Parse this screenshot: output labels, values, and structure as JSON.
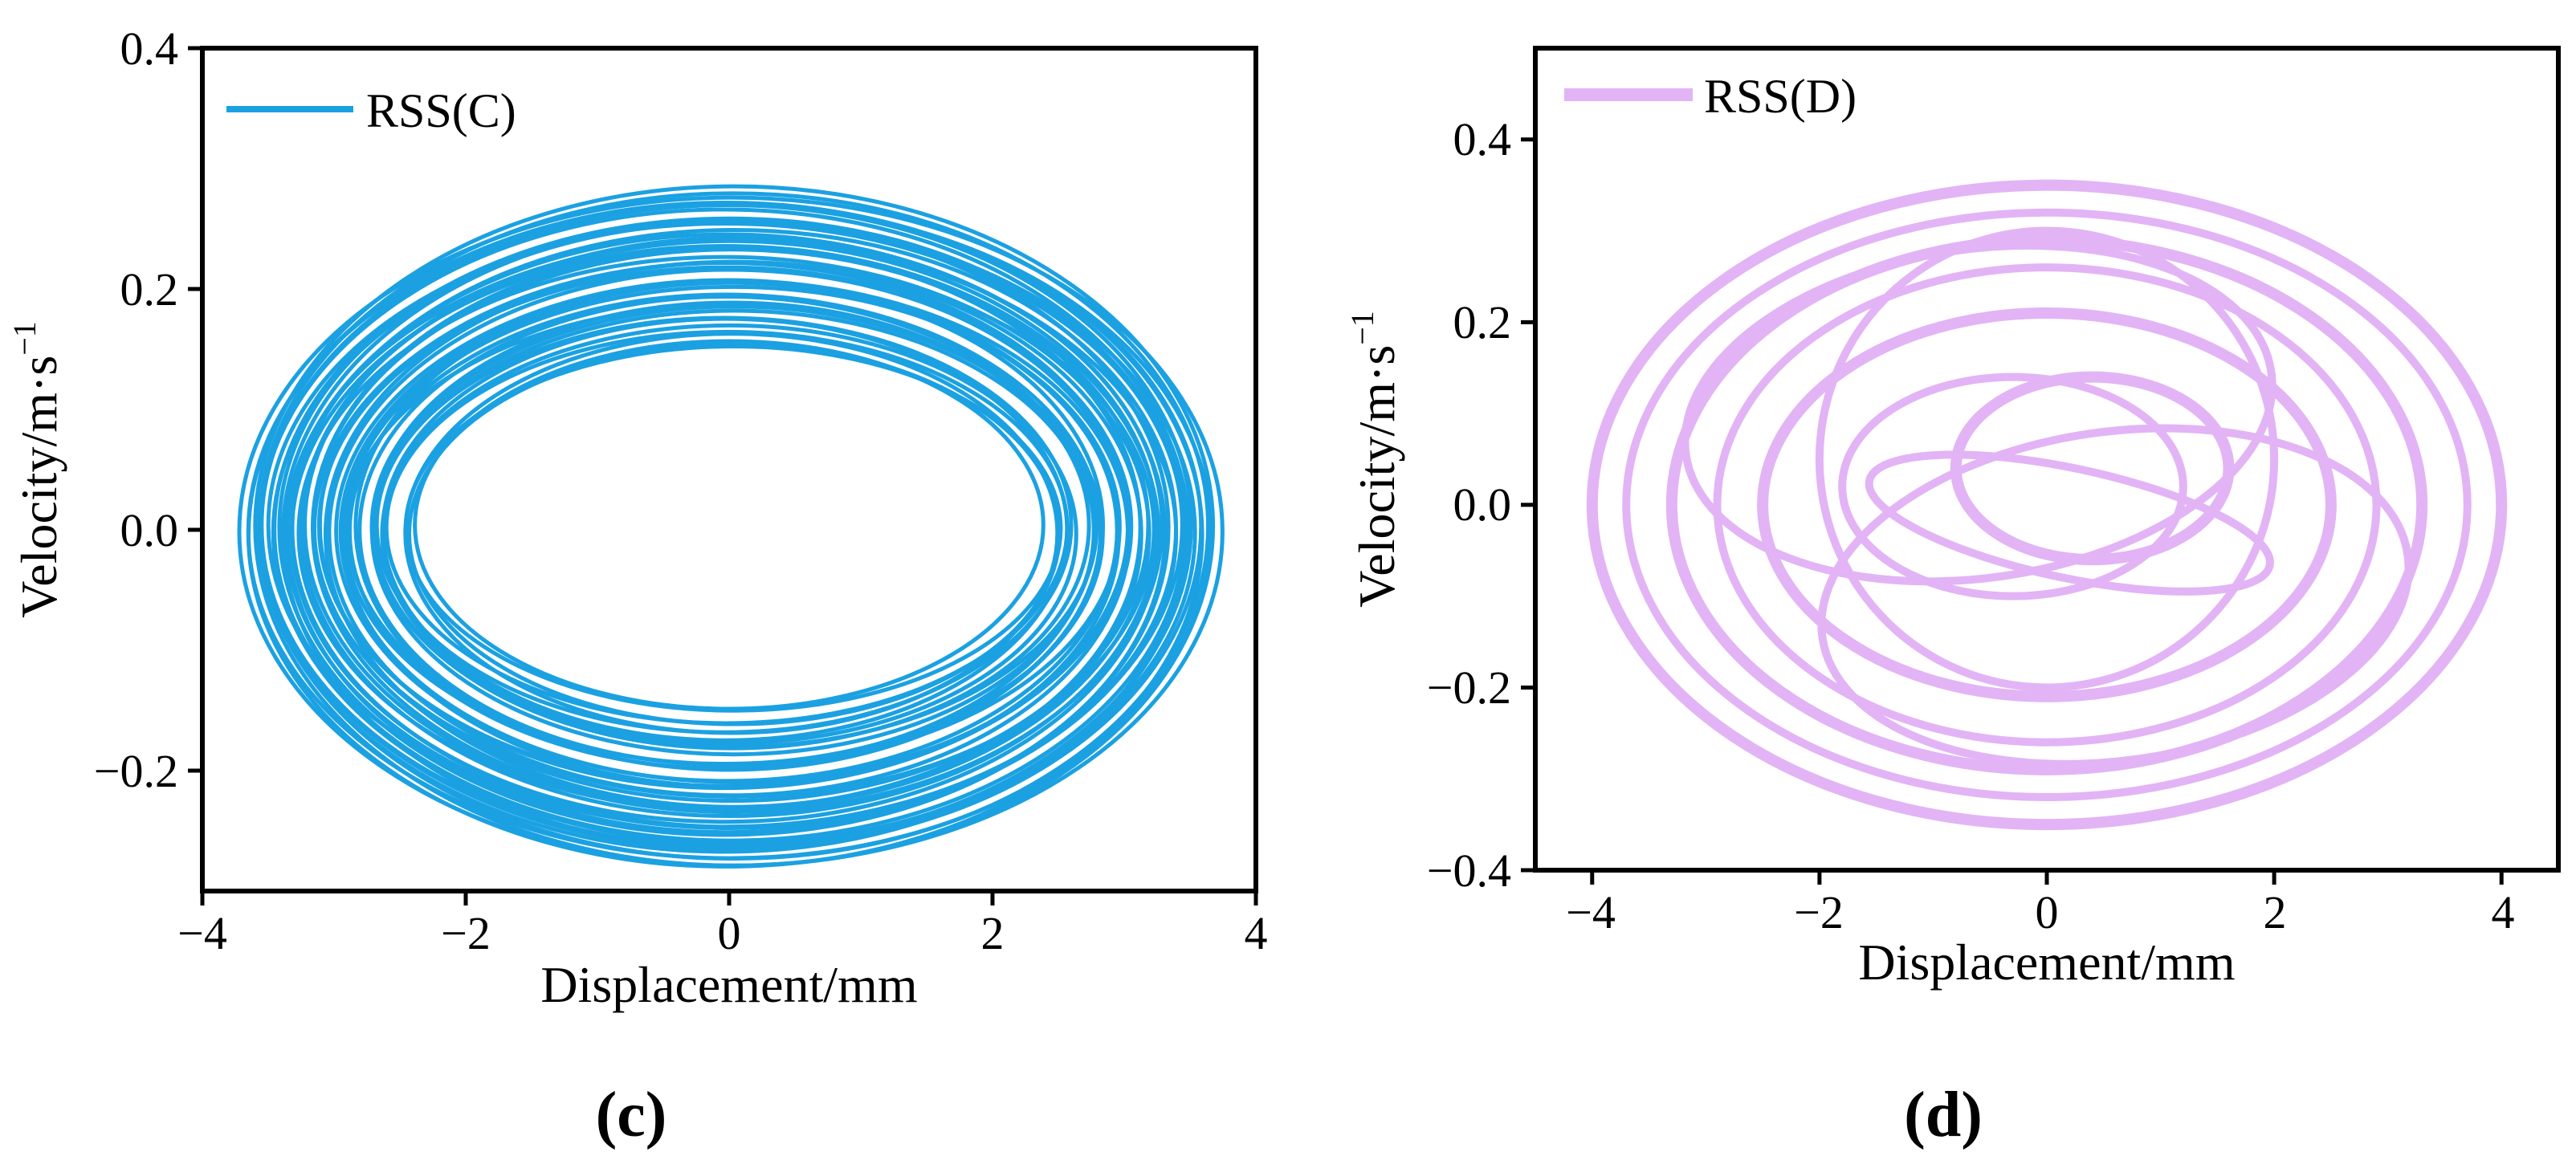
{
  "panels": [
    {
      "caption": "(c)",
      "chart_data": {
        "type": "line",
        "subtype": "phase-portrait",
        "title": "",
        "xlabel": "Displacement/mm",
        "ylabel": "Velocity/m·s",
        "ylabel_superscript": "−1",
        "xlim": [
          -4,
          4
        ],
        "ylim": [
          -0.3,
          0.4
        ],
        "xticks": [
          -4,
          -2,
          0,
          2,
          4
        ],
        "xtick_labels": [
          "−4",
          "−2",
          "0",
          "2",
          "4"
        ],
        "yticks": [
          -0.2,
          0.0,
          0.2,
          0.4
        ],
        "ytick_labels": [
          "−0.2",
          "0.0",
          "0.2",
          "0.4"
        ],
        "legend": "top-left",
        "grid": false,
        "series": [
          {
            "name": "RSS(C)",
            "color": "#1ba1e2",
            "description": "dense quasi-periodic annulus",
            "center": [
              0.0,
              0.0
            ],
            "outer_x_range": [
              -3.7,
              3.7
            ],
            "outer_y_range": [
              -0.285,
              0.28
            ],
            "inner_x_range": [
              -2.35,
              2.35
            ],
            "inner_y_range": [
              -0.145,
              0.145
            ]
          }
        ]
      }
    },
    {
      "caption": "(d)",
      "chart_data": {
        "type": "line",
        "subtype": "phase-portrait",
        "title": "",
        "xlabel": "Displacement/mm",
        "ylabel": "Velocity/m·s",
        "ylabel_superscript": "−1",
        "xlim": [
          -4.5,
          4.5
        ],
        "ylim": [
          -0.4,
          0.5
        ],
        "xticks": [
          -4,
          -2,
          0,
          2,
          4
        ],
        "xtick_labels": [
          "−4",
          "−2",
          "0",
          "2",
          "4"
        ],
        "yticks": [
          -0.4,
          -0.2,
          0.0,
          0.2,
          0.4
        ],
        "ytick_labels": [
          "−0.4",
          "−0.2",
          "0.0",
          "0.2",
          "0.4"
        ],
        "legend": "top-left",
        "grid": false,
        "series": [
          {
            "name": "RSS(D)",
            "color": "#e2b4f5",
            "description": "multi-loop periodic orbit (ellipses plus inner lobes)",
            "ellipses": [
              {
                "cx": 0.0,
                "cy": 0.0,
                "rx": 4.0,
                "ry": 0.35
              },
              {
                "cx": 0.0,
                "cy": 0.0,
                "rx": 3.7,
                "ry": 0.32
              },
              {
                "cx": 0.0,
                "cy": 0.0,
                "rx": 3.3,
                "ry": 0.29
              },
              {
                "cx": 0.0,
                "cy": 0.0,
                "rx": 2.9,
                "ry": 0.26
              },
              {
                "cx": 0.0,
                "cy": 0.0,
                "rx": 2.5,
                "ry": 0.21
              },
              {
                "cx": -0.3,
                "cy": 0.02,
                "rx": 1.5,
                "ry": 0.12
              },
              {
                "cx": 0.4,
                "cy": 0.04,
                "rx": 1.2,
                "ry": 0.1
              }
            ],
            "outer_x_range": [
              -4.0,
              4.0
            ],
            "outer_y_range": [
              -0.35,
              0.35
            ]
          }
        ]
      }
    }
  ]
}
